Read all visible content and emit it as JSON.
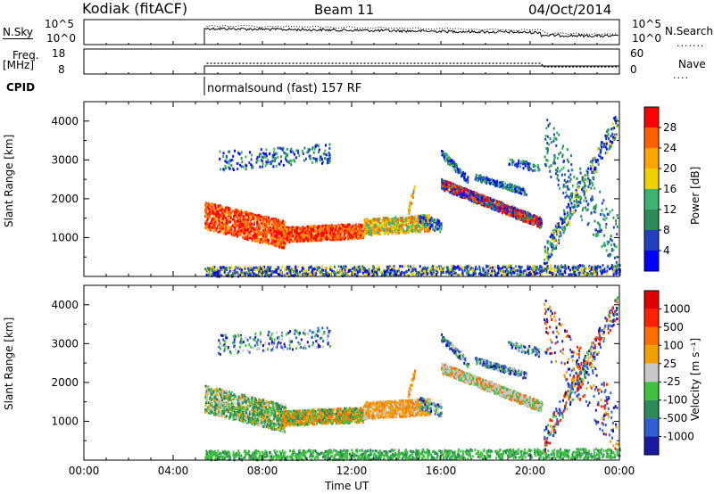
{
  "header": {
    "station": "Kodiak (fitACF)",
    "beam": "Beam 11",
    "date": "04/Oct/2014"
  },
  "summary_panels": {
    "nsky_label": "N.Sky",
    "nsearch_label": "N.Search",
    "freq_label_line1": "Freq.",
    "freq_label_line2": "[MHz]",
    "nave_label": "Nave",
    "cpid_label": "CPID",
    "cpid_text": "normalsound (fast) 157 RF",
    "noise_left_ticks": [
      "10^5",
      "10^0"
    ],
    "noise_right_ticks": [
      "10^5",
      "10^0"
    ],
    "freq_left_ticks": [
      "18",
      "8"
    ],
    "nave_right_ticks": [
      "60",
      "0"
    ]
  },
  "colors": {
    "power": [
      "#0000ff",
      "#2040c0",
      "#2e8b57",
      "#3cb371",
      "#f0d000",
      "#ffa500",
      "#ff6000",
      "#ff0000"
    ],
    "velocity": [
      "#1a1aa0",
      "#3060d0",
      "#2e8b57",
      "#40c040",
      "#c8c8c8",
      "#f0a000",
      "#ff7000",
      "#ff2000",
      "#e00000"
    ]
  },
  "chart_data": [
    {
      "type": "heatmap",
      "name": "power",
      "ylabel": "Slant Range [km]",
      "ylim": [
        0,
        4500
      ],
      "yticks": [
        "1000",
        "2000",
        "3000",
        "4000"
      ],
      "colorbar_label": "Power [dB]",
      "colorbar_ticks": [
        "4",
        "8",
        "12",
        "16",
        "20",
        "24",
        "28"
      ],
      "colorbar_range": [
        0,
        32
      ]
    },
    {
      "type": "heatmap",
      "name": "velocity",
      "ylabel": "Slant Range [km]",
      "ylim": [
        0,
        4500
      ],
      "yticks": [
        "1000",
        "2000",
        "3000",
        "4000"
      ],
      "colorbar_label": "Velocity [m s⁻¹]",
      "colorbar_ticks": [
        "1000",
        "500",
        "100",
        "25",
        "-25",
        "-100",
        "-500",
        "-1000"
      ],
      "xlabel": "Time UT",
      "xticks": [
        "00:00",
        "04:00",
        "08:00",
        "12:00",
        "16:00",
        "20:00",
        "00:00"
      ],
      "xlim_hours": [
        0,
        24
      ]
    }
  ]
}
